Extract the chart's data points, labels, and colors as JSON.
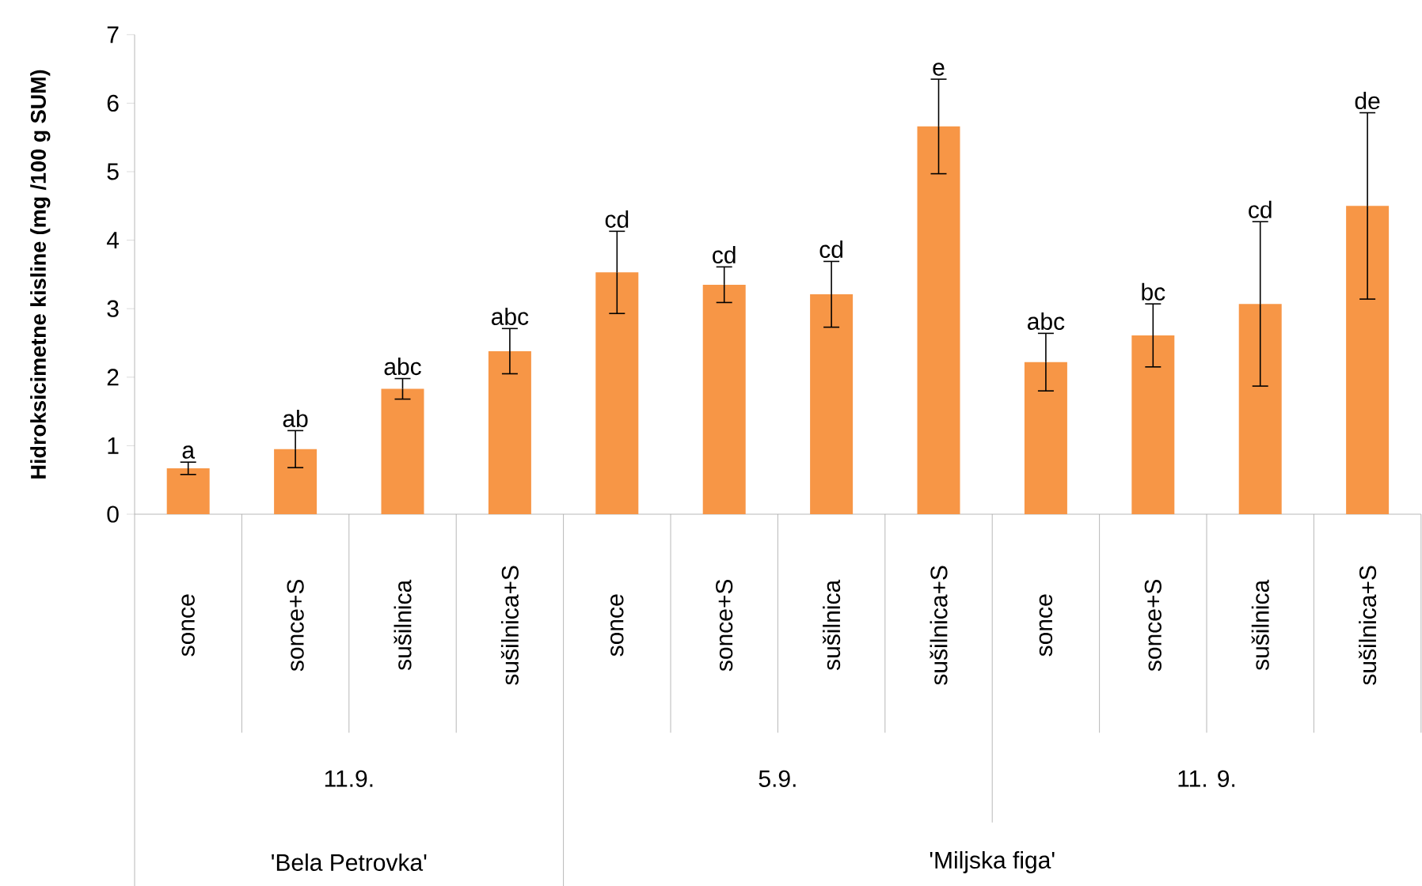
{
  "chart_data": {
    "type": "bar",
    "ylabel": "Hidroksicimetne kisline (mg /100 g SUM)",
    "categories": [
      "sonce",
      "sonce+S",
      "sušilnica",
      "sušilnica+S",
      "sonce",
      "sonce+S",
      "sušilnica",
      "sušilnica+S",
      "sonce",
      "sonce+S",
      "sušilnica",
      "sušilnica+S"
    ],
    "values": [
      0.67,
      0.95,
      1.83,
      2.38,
      3.53,
      3.35,
      3.21,
      5.66,
      2.22,
      2.61,
      3.07,
      4.5
    ],
    "errors": [
      0.09,
      0.27,
      0.15,
      0.33,
      0.6,
      0.26,
      0.48,
      0.69,
      0.42,
      0.46,
      1.2,
      1.36
    ],
    "color": "#f79646",
    "ylim": [
      0,
      7
    ],
    "yticks": [
      0,
      1,
      2,
      3,
      4,
      5,
      6,
      7
    ],
    "grid": false,
    "annotations": [
      "a",
      "ab",
      "abc",
      "abc",
      "cd",
      "cd",
      "cd",
      "e",
      "abc",
      "bc",
      "cd",
      "de",
      "11.9.",
      "5.9.",
      "11. 9.",
      "'Bela Petrovka'",
      "'Miljska figa'"
    ]
  }
}
